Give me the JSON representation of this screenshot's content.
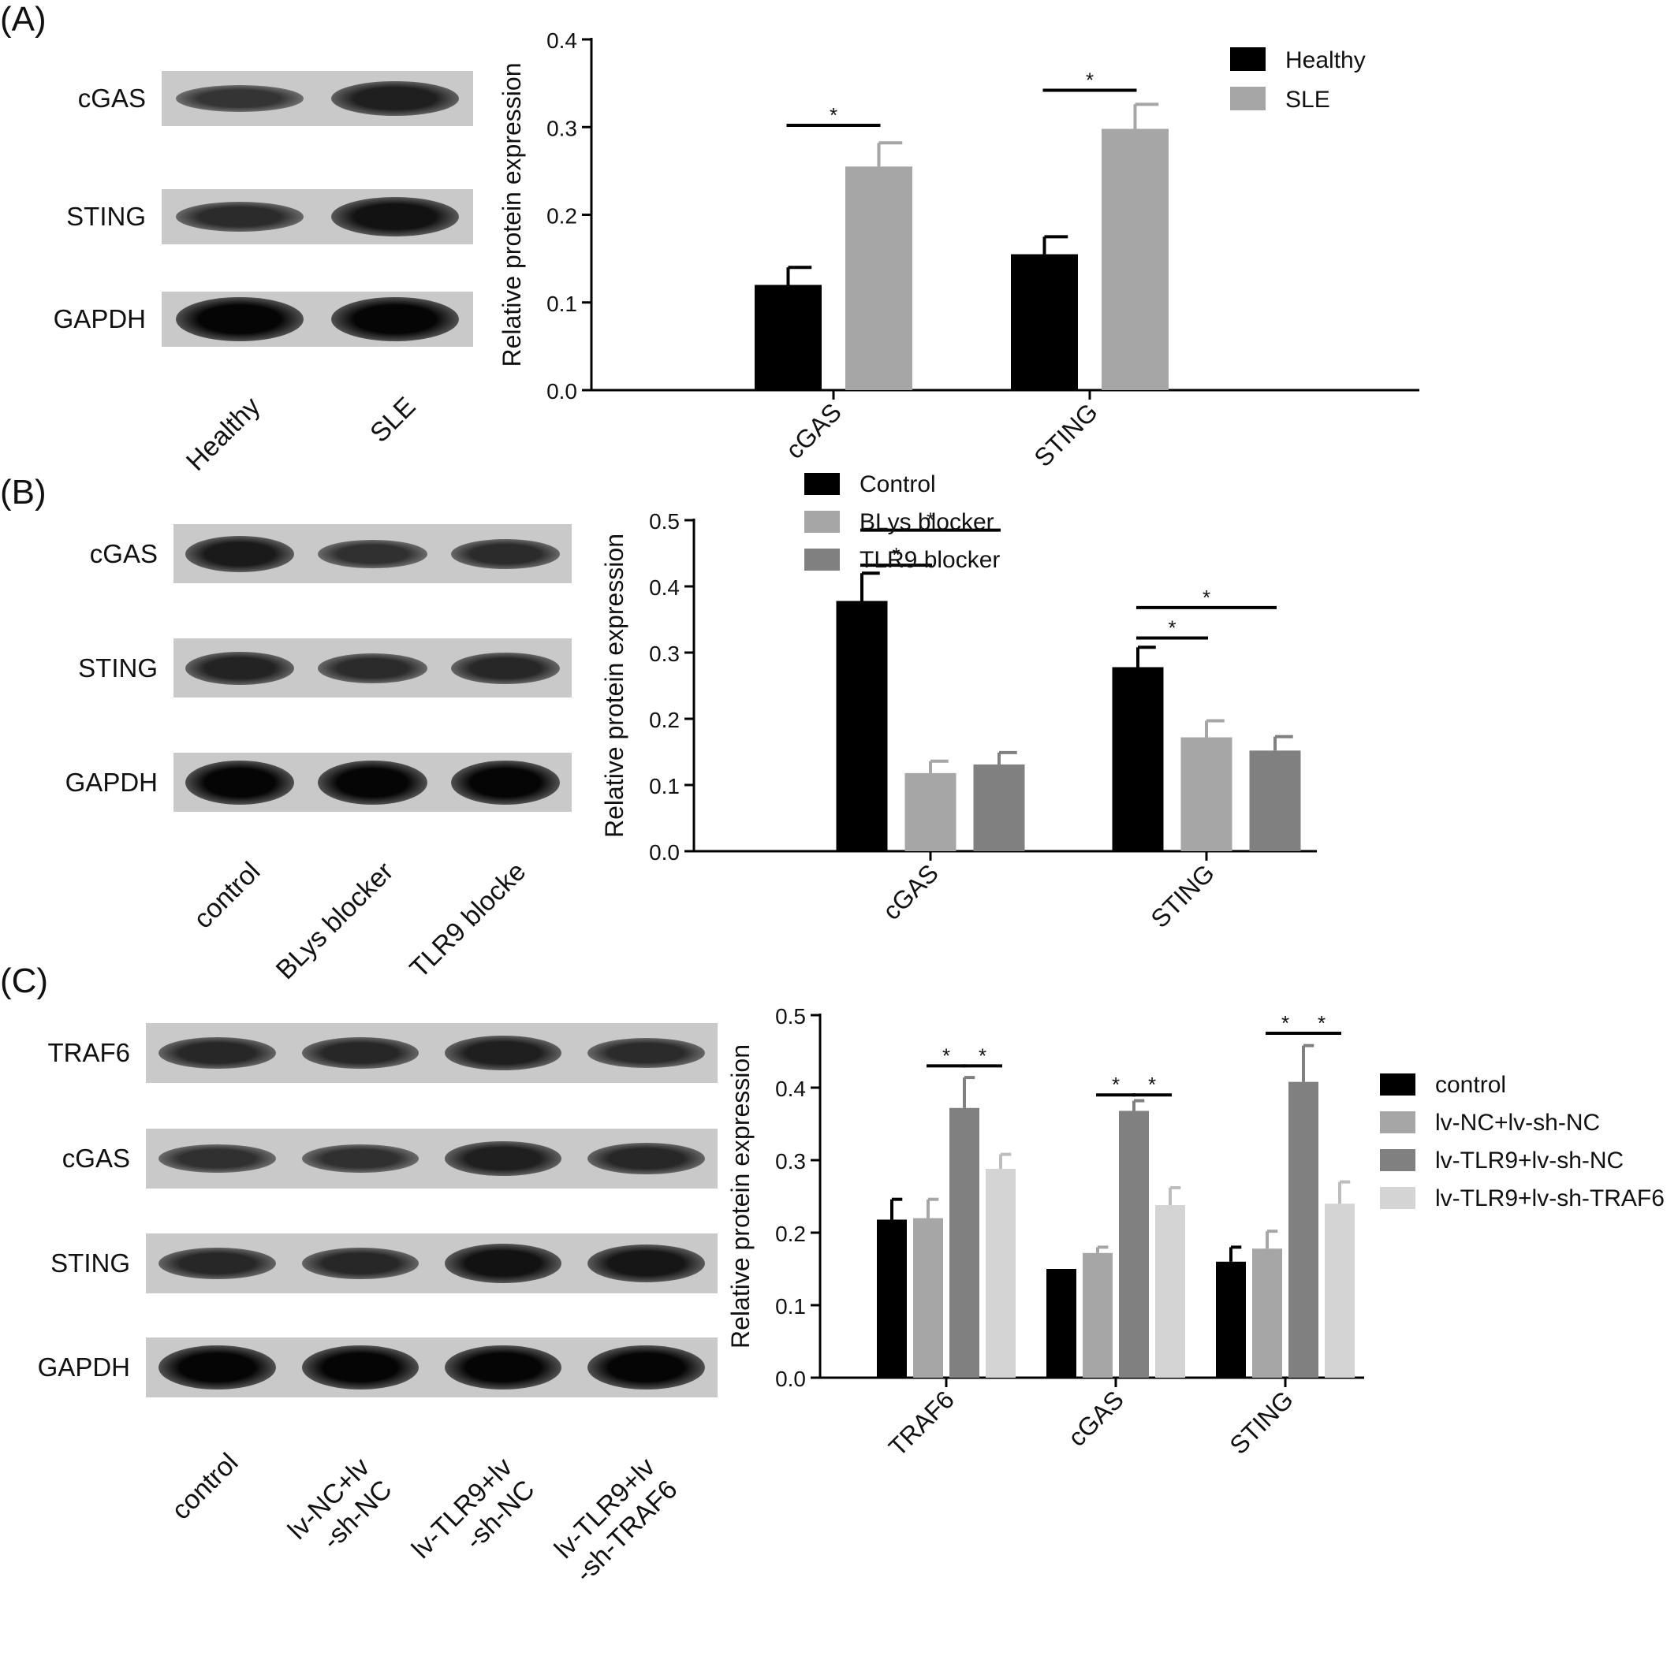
{
  "panels": [
    {
      "id": "a",
      "letter": "(A)",
      "blot": {
        "rows": [
          "cGAS",
          "STING",
          "GAPDH"
        ],
        "lanes": [
          "Healthy",
          "SLE"
        ],
        "band_intensity": [
          [
            0.45,
            0.7
          ],
          [
            0.55,
            0.85
          ],
          [
            1.0,
            1.0
          ]
        ]
      }
    },
    {
      "id": "b",
      "letter": "(B)",
      "blot": {
        "rows": [
          "cGAS",
          "STING",
          "GAPDH"
        ],
        "lanes": [
          "control",
          "BLys blocker",
          "TLR9 blocke"
        ],
        "band_intensity": [
          [
            0.75,
            0.5,
            0.55
          ],
          [
            0.65,
            0.55,
            0.6
          ],
          [
            1.0,
            1.0,
            1.0
          ]
        ]
      }
    },
    {
      "id": "c",
      "letter": "(C)",
      "blot": {
        "rows": [
          "TRAF6",
          "cGAS",
          "STING",
          "GAPDH"
        ],
        "lanes": [
          "control",
          "lv-NC+lv\n-sh-NC",
          "lv-TLR9+lv\n-sh-NC",
          "lv-TLR9+lv\n-sh-TRAF6"
        ],
        "band_intensity": [
          [
            0.6,
            0.6,
            0.7,
            0.55
          ],
          [
            0.5,
            0.5,
            0.7,
            0.6
          ],
          [
            0.6,
            0.6,
            0.85,
            0.8
          ],
          [
            1.0,
            1.0,
            1.0,
            1.0
          ]
        ]
      }
    }
  ],
  "chart_data": [
    {
      "type": "bar",
      "ylabel": "Relative protein expression",
      "ylim": [
        0,
        0.4
      ],
      "yticks": [
        "0.0",
        "0.1",
        "0.2",
        "0.3",
        "0.4"
      ],
      "categories": [
        "cGAS",
        "STING"
      ],
      "series": [
        {
          "name": "Healthy",
          "color": "#000000",
          "values": [
            0.12,
            0.155
          ],
          "errors": [
            0.02,
            0.02
          ]
        },
        {
          "name": "SLE",
          "color": "#a6a6a6",
          "values": [
            0.255,
            0.298
          ],
          "errors": [
            0.027,
            0.028
          ]
        }
      ],
      "significance": [
        {
          "category": 0,
          "from": 0,
          "to": 1,
          "y": 0.302,
          "label": "*"
        },
        {
          "category": 1,
          "from": 0,
          "to": 1,
          "y": 0.342,
          "label": "*"
        }
      ],
      "legend_position": "top-right"
    },
    {
      "type": "bar",
      "ylabel": "Relative protein expression",
      "ylim": [
        0,
        0.5
      ],
      "yticks": [
        "0.0",
        "0.1",
        "0.2",
        "0.3",
        "0.4",
        "0.5"
      ],
      "categories": [
        "cGAS",
        "STING"
      ],
      "series": [
        {
          "name": "Control",
          "color": "#000000",
          "values": [
            0.378,
            0.278
          ],
          "errors": [
            0.042,
            0.03
          ]
        },
        {
          "name": "BLys blocker",
          "color": "#a6a6a6",
          "values": [
            0.118,
            0.172
          ],
          "errors": [
            0.018,
            0.025
          ]
        },
        {
          "name": "TLR9 blocker",
          "color": "#808080",
          "values": [
            0.131,
            0.152
          ],
          "errors": [
            0.018,
            0.021
          ]
        }
      ],
      "significance": [
        {
          "category": 0,
          "from": 0,
          "to": 1,
          "y": 0.432,
          "label": "*"
        },
        {
          "category": 0,
          "from": 0,
          "to": 2,
          "y": 0.485,
          "label": "*"
        },
        {
          "category": 1,
          "from": 0,
          "to": 1,
          "y": 0.322,
          "label": "*"
        },
        {
          "category": 1,
          "from": 0,
          "to": 2,
          "y": 0.368,
          "label": "*"
        }
      ],
      "legend_position": "top-right"
    },
    {
      "type": "bar",
      "ylabel": "Relative protein expression",
      "ylim": [
        0,
        0.5
      ],
      "yticks": [
        "0.0",
        "0.1",
        "0.2",
        "0.3",
        "0.4",
        "0.5"
      ],
      "categories": [
        "TRAF6",
        "cGAS",
        "STING"
      ],
      "series": [
        {
          "name": "control",
          "color": "#000000",
          "values": [
            0.218,
            0.15,
            0.16
          ],
          "errors": [
            0.028,
            0.0,
            0.02
          ]
        },
        {
          "name": "lv-NC+lv-sh-NC",
          "color": "#a6a6a6",
          "values": [
            0.22,
            0.172,
            0.178
          ],
          "errors": [
            0.026,
            0.008,
            0.024
          ]
        },
        {
          "name": "lv-TLR9+lv-sh-NC",
          "color": "#808080",
          "values": [
            0.372,
            0.368,
            0.408
          ],
          "errors": [
            0.042,
            0.014,
            0.05
          ]
        },
        {
          "name": "lv-TLR9+lv-sh-TRAF6",
          "color": "#d4d4d4",
          "values": [
            0.288,
            0.238,
            0.24
          ],
          "errors": [
            0.02,
            0.024,
            0.03
          ]
        }
      ],
      "significance": [
        {
          "category": 0,
          "from": 1,
          "to": 2,
          "y": 0.43,
          "label": "*"
        },
        {
          "category": 0,
          "from": 2,
          "to": 3,
          "y": 0.43,
          "label": "*"
        },
        {
          "category": 1,
          "from": 1,
          "to": 2,
          "y": 0.39,
          "label": "*"
        },
        {
          "category": 1,
          "from": 2,
          "to": 3,
          "y": 0.39,
          "label": "*"
        },
        {
          "category": 2,
          "from": 1,
          "to": 2,
          "y": 0.475,
          "label": "*"
        },
        {
          "category": 2,
          "from": 2,
          "to": 3,
          "y": 0.475,
          "label": "*"
        }
      ],
      "legend_position": "right"
    }
  ]
}
